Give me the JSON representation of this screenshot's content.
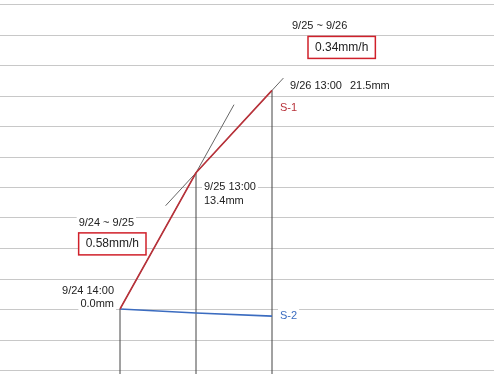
{
  "chart_data": {
    "type": "line",
    "categories": [
      "9/24 14:00",
      "9/25 13:00",
      "9/26 13:00"
    ],
    "series": [
      {
        "name": "S-1",
        "color": "#b8323a",
        "values": [
          0.0,
          13.4,
          21.5
        ],
        "value_labels": [
          "0.0mm",
          "13.4mm",
          "21.5mm"
        ]
      },
      {
        "name": "S-2",
        "color": "#3b6cc0",
        "values": [
          0.0,
          -0.4,
          -0.7
        ]
      }
    ],
    "ylim": [
      -6,
      30
    ],
    "yticks": [
      -6,
      -3,
      0,
      3,
      6,
      9,
      12,
      15,
      18,
      21,
      24,
      27,
      30
    ],
    "grid": true,
    "tick_labels": false,
    "data_labels": true,
    "annotations": [
      {
        "period": "9/24 ~ 9/25",
        "rate": "0.58mm/h"
      },
      {
        "period": "9/25 ~ 9/26",
        "rate": "0.34mm/h"
      }
    ]
  }
}
